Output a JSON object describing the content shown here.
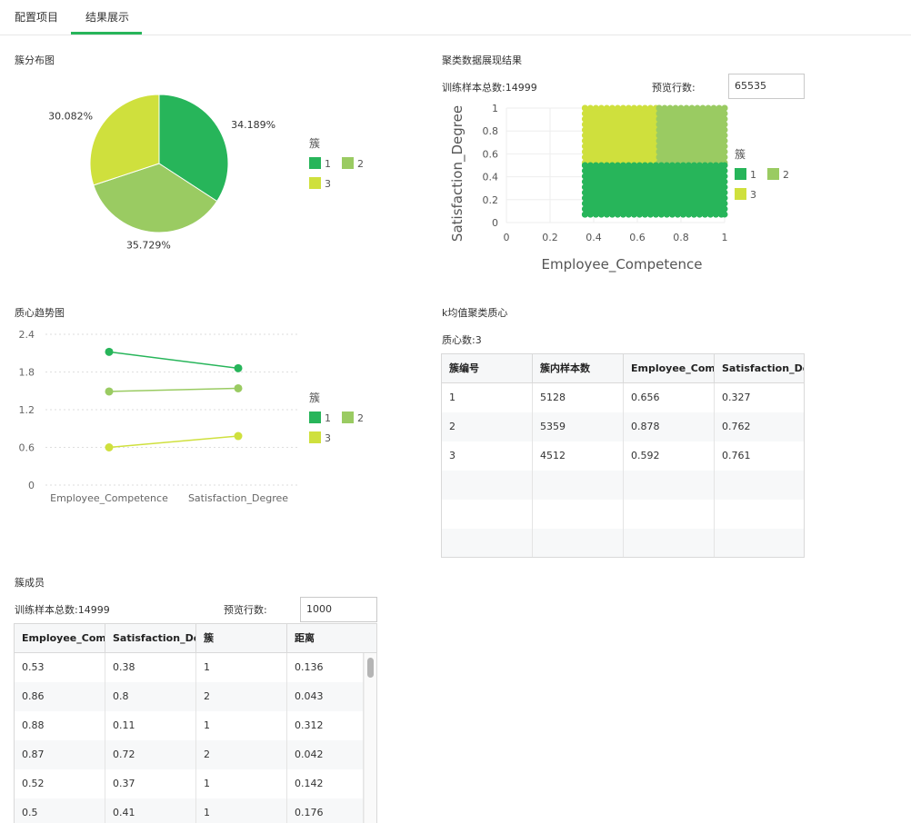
{
  "tabs": [
    {
      "label": "配置项目"
    },
    {
      "label": "结果展示"
    }
  ],
  "colors": {
    "accent": "#27b55a",
    "cluster1": "#27b55a",
    "cluster2": "#9acb62",
    "cluster3": "#cfe03d"
  },
  "pie": {
    "title": "簇分布图",
    "labels": [
      "34.189%",
      "35.729%",
      "30.082%"
    ],
    "legend_title": "簇",
    "legend": [
      "1",
      "2",
      "3"
    ]
  },
  "scatter": {
    "title": "聚类数据展现结果",
    "train_total_label": "训练样本总数:14999",
    "preview_label": "预览行数:",
    "preview_value": "65535",
    "legend_title": "簇",
    "legend": [
      "1",
      "2",
      "3"
    ]
  },
  "trend": {
    "title": "质心趋势图",
    "legend_title": "簇",
    "legend": [
      "1",
      "2",
      "3"
    ]
  },
  "centroids": {
    "title": "k均值聚类质心",
    "count_label": "质心数:3",
    "headers": [
      "簇编号",
      "簇内样本数",
      "Employee_Competence",
      "Satisfaction_Degree"
    ],
    "rows": [
      [
        "1",
        "5128",
        "0.656",
        "0.327"
      ],
      [
        "2",
        "5359",
        "0.878",
        "0.762"
      ],
      [
        "3",
        "4512",
        "0.592",
        "0.761"
      ]
    ]
  },
  "members": {
    "title": "簇成员",
    "train_total_label": "训练样本总数:14999",
    "preview_label": "预览行数:",
    "preview_value": "1000",
    "headers": [
      "Employee_Competence",
      "Satisfaction_Degree",
      "簇",
      "距离"
    ],
    "rows": [
      [
        "0.53",
        "0.38",
        "1",
        "0.136"
      ],
      [
        "0.86",
        "0.8",
        "2",
        "0.043"
      ],
      [
        "0.88",
        "0.11",
        "1",
        "0.312"
      ],
      [
        "0.87",
        "0.72",
        "2",
        "0.042"
      ],
      [
        "0.52",
        "0.37",
        "1",
        "0.142"
      ],
      [
        "0.5",
        "0.41",
        "1",
        "0.176"
      ]
    ]
  },
  "chart_data": [
    {
      "type": "pie",
      "title": "簇分布图",
      "categories": [
        "1",
        "2",
        "3"
      ],
      "values": [
        34.189,
        35.729,
        30.082
      ]
    },
    {
      "type": "scatter",
      "title": "聚类数据展现结果",
      "xlabel": "Employee_Competence",
      "ylabel": "Satisfaction_Degree",
      "xlim": [
        0,
        1
      ],
      "ylim": [
        0,
        1
      ],
      "x_ticks": [
        "0",
        "0.2",
        "0.4",
        "0.6",
        "0.8",
        "1"
      ],
      "y_ticks": [
        "0",
        "0.2",
        "0.4",
        "0.6",
        "0.8",
        "1"
      ],
      "regions": [
        {
          "cluster": "1",
          "x": [
            0.36,
            1.0
          ],
          "y": [
            0.07,
            0.5
          ]
        },
        {
          "cluster": "2",
          "x": [
            0.7,
            1.0
          ],
          "y": [
            0.5,
            1.0
          ]
        },
        {
          "cluster": "3",
          "x": [
            0.36,
            0.7
          ],
          "y": [
            0.5,
            1.0
          ]
        }
      ],
      "legend_placement": "right"
    },
    {
      "type": "line",
      "title": "质心趋势图",
      "categories": [
        "Employee_Competence",
        "Satisfaction_Degree"
      ],
      "ylim": [
        0,
        2.4
      ],
      "y_ticks": [
        "0",
        "0.6",
        "1.2",
        "1.8",
        "2.4"
      ],
      "series": [
        {
          "name": "1",
          "values": [
            2.12,
            1.86
          ]
        },
        {
          "name": "2",
          "values": [
            1.49,
            1.54
          ]
        },
        {
          "name": "3",
          "values": [
            0.6,
            0.78
          ]
        }
      ],
      "grid": true,
      "legend_placement": "right"
    }
  ]
}
